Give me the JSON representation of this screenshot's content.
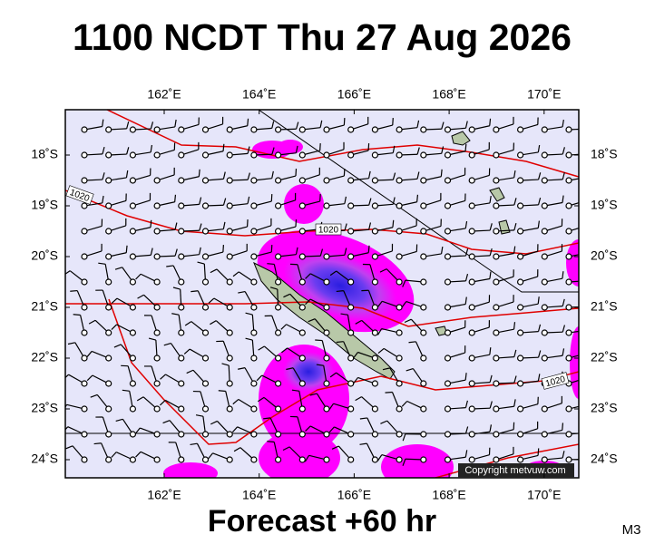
{
  "header": {
    "title": "1100 NCDT Thu 27 Aug 2026"
  },
  "map": {
    "lon_labels": [
      "162˚E",
      "164˚E",
      "166˚E",
      "168˚E",
      "170˚E"
    ],
    "lat_labels": [
      "18˚S",
      "19˚S",
      "20˚S",
      "21˚S",
      "22˚S",
      "23˚S",
      "24˚S"
    ],
    "isobar_labels": [
      "1020",
      "1020",
      "1020"
    ],
    "copyright": "Copyright metvuw.com"
  },
  "footer": {
    "caption": "Forecast +60 hr",
    "code": "M3"
  }
}
